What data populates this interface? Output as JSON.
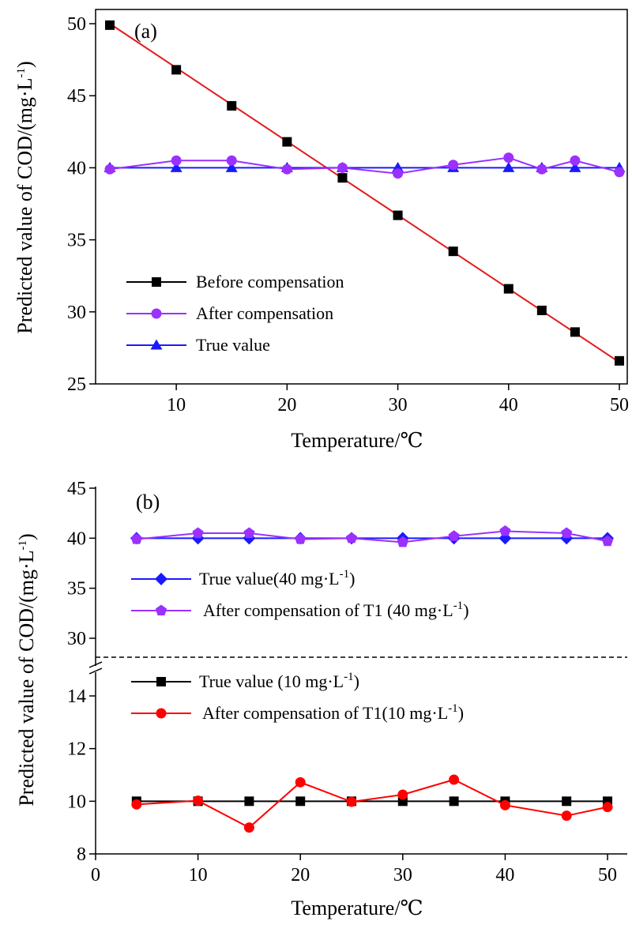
{
  "chart_data": [
    {
      "type": "line",
      "panel_label": "(a)",
      "xlabel": "Temperature/℃",
      "ylabel": "Predicted value of COD/(mg·L",
      "ylabel_sup": "-1",
      "ylabel_close": ")",
      "xlim": [
        3,
        50
      ],
      "ylim": [
        25,
        50
      ],
      "xticks": [
        10,
        20,
        30,
        40,
        50
      ],
      "yticks": [
        25,
        30,
        35,
        40,
        45,
        50
      ],
      "legend_position": "lower-left",
      "series": [
        {
          "name": "Before compensation",
          "color": "#000000",
          "marker": "square",
          "x": [
            4,
            10,
            15,
            20,
            25,
            30,
            35,
            40,
            43,
            46,
            50
          ],
          "y": [
            49.9,
            46.8,
            44.3,
            41.8,
            39.3,
            36.7,
            34.2,
            31.6,
            30.1,
            28.6,
            26.6
          ]
        },
        {
          "name": "After compensation",
          "color": "#9b30ff",
          "marker": "circle",
          "x": [
            4,
            10,
            15,
            20,
            25,
            30,
            35,
            40,
            43,
            46,
            50
          ],
          "y": [
            39.9,
            40.5,
            40.5,
            39.9,
            40.0,
            39.6,
            40.2,
            40.7,
            39.9,
            40.5,
            39.7
          ]
        },
        {
          "name": "True value",
          "color": "#1a1aff",
          "marker": "triangle",
          "x": [
            4,
            10,
            15,
            20,
            25,
            30,
            35,
            40,
            43,
            46,
            50
          ],
          "y": [
            40,
            40,
            40,
            40,
            40,
            40,
            40,
            40,
            40,
            40,
            40
          ]
        }
      ],
      "fit_line": {
        "color": "#e31a1c",
        "x": [
          4,
          50
        ],
        "y": [
          50.0,
          26.5
        ]
      }
    },
    {
      "type": "line",
      "panel_label": "(b)",
      "xlabel": "Temperature/℃",
      "ylabel": "Predicted value of COD/(mg·L",
      "ylabel_sup": "-1",
      "ylabel_close": ")",
      "xlim": [
        0,
        51
      ],
      "xticks": [
        0,
        10,
        20,
        30,
        40,
        50
      ],
      "y_axis_break": true,
      "upper_ylim": [
        28,
        45
      ],
      "upper_yticks": [
        30,
        35,
        40,
        45
      ],
      "lower_ylim": [
        8,
        15.6
      ],
      "lower_yticks": [
        8,
        10,
        12,
        14
      ],
      "legend_position": "stacked inside each segment",
      "series": [
        {
          "name": "True value(40 mg·L",
          "name_sup": "-1",
          "name_close": ")",
          "segment": "upper",
          "color": "#1a1aff",
          "marker": "diamond",
          "x": [
            4,
            10,
            15,
            20,
            25,
            30,
            35,
            40,
            46,
            50
          ],
          "y": [
            40,
            40,
            40,
            40,
            40,
            40,
            40,
            40,
            40,
            40
          ]
        },
        {
          "name": "After compensation of T1 (40 mg·L",
          "name_sup": "-1",
          "name_close": ")",
          "segment": "upper",
          "color": "#9b30ff",
          "marker": "pentagon",
          "x": [
            4,
            10,
            15,
            20,
            25,
            30,
            35,
            40,
            46,
            50
          ],
          "y": [
            39.9,
            40.5,
            40.5,
            39.9,
            40.0,
            39.6,
            40.2,
            40.7,
            40.5,
            39.7
          ]
        },
        {
          "name": "True value (10 mg·L",
          "name_sup": "-1",
          "name_close": ")",
          "segment": "lower",
          "color": "#000000",
          "marker": "square",
          "x": [
            4,
            10,
            15,
            20,
            25,
            30,
            35,
            40,
            46,
            50
          ],
          "y": [
            10,
            10,
            10,
            10,
            10,
            10,
            10,
            10,
            10,
            10
          ]
        },
        {
          "name": "After compensation of T1(10 mg·L",
          "name_sup": "-1",
          "name_close": ")",
          "segment": "lower",
          "color": "#ff0000",
          "marker": "circle",
          "x": [
            4,
            10,
            15,
            20,
            25,
            30,
            35,
            40,
            46,
            50
          ],
          "y": [
            9.88,
            10.02,
            9.0,
            10.72,
            9.98,
            10.25,
            10.82,
            9.85,
            9.45,
            9.78
          ]
        }
      ]
    }
  ]
}
